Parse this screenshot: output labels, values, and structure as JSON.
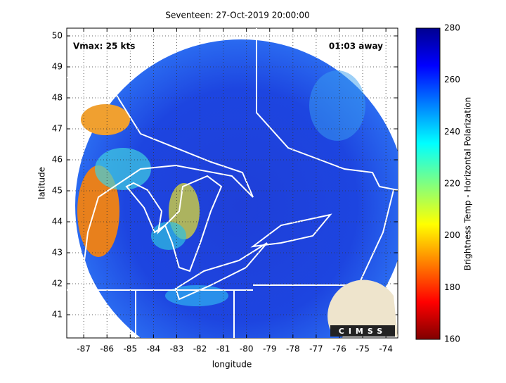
{
  "chart_data": {
    "type": "map",
    "title": "Seventeen: 27-Oct-2019 20:00:00",
    "annotations": [
      "Vmax: 25 kts",
      "01:03 away"
    ],
    "x_label": "longitude",
    "y_label": "latitude",
    "xlim": [
      -87.73,
      -73.49
    ],
    "ylim": [
      40.25,
      50.25
    ],
    "xticks": [
      -87,
      -86,
      -85,
      -84,
      -83,
      -82,
      -81,
      -80,
      -79,
      -78,
      -77,
      -76,
      -75,
      -74
    ],
    "yticks": [
      41,
      42,
      43,
      44,
      45,
      46,
      47,
      48,
      49,
      50
    ],
    "grid": true,
    "colorbar": {
      "label": "Brightness Temp - Horizontal Polarization",
      "lim": [
        160,
        280
      ],
      "ticks": [
        160,
        180,
        200,
        220,
        240,
        260,
        280
      ]
    },
    "logo": "CIMSS"
  }
}
